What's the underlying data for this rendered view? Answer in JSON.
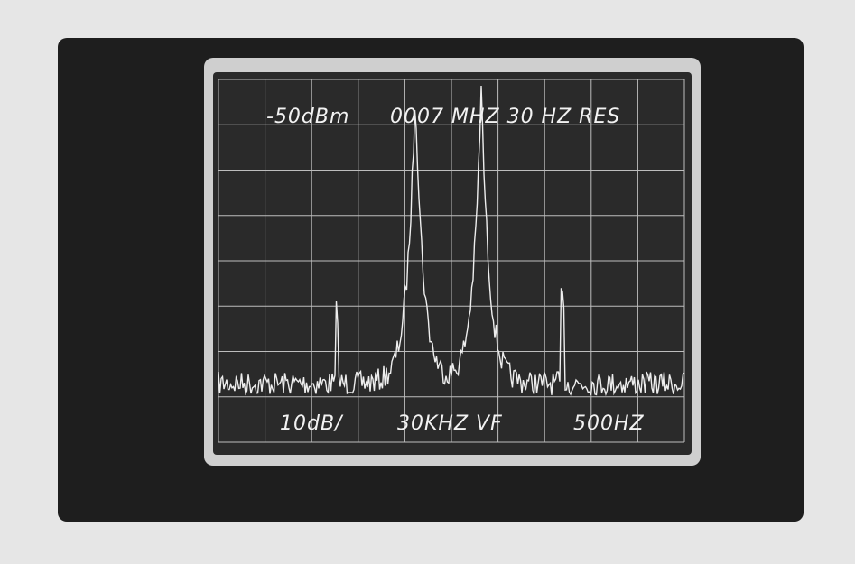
{
  "screen": {
    "top_left": "-50dBm",
    "top_right": "0007 MHZ 30 HZ RES",
    "bottom_left": "10dB/",
    "bottom_center": "30KHZ VF",
    "bottom_right": "500HZ"
  }
}
